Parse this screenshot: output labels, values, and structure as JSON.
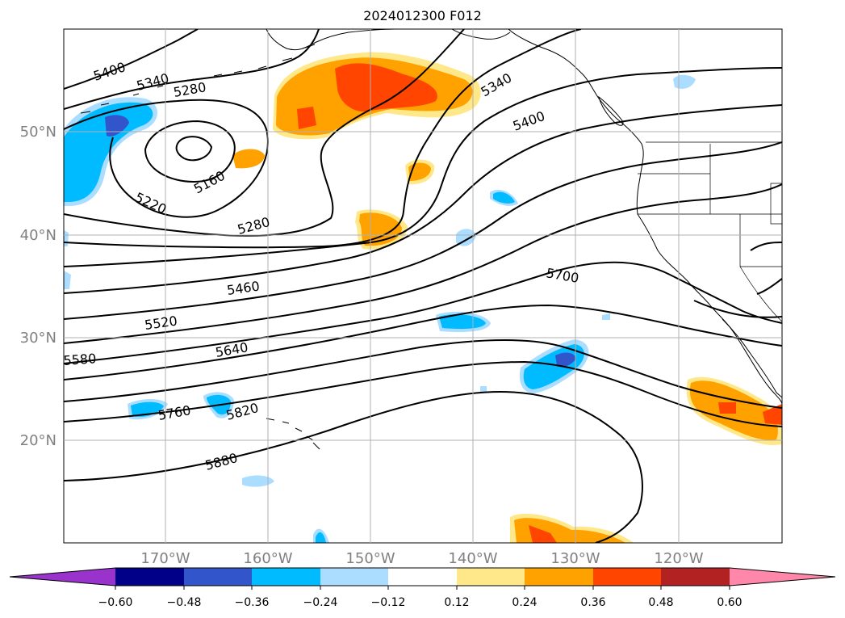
{
  "title": "2024012300 F012",
  "map": {
    "lat_labels": [
      "50°N",
      "40°N",
      "30°N",
      "20°N"
    ],
    "lon_labels": [
      "170°W",
      "160°W",
      "150°W",
      "140°W",
      "130°W",
      "120°W"
    ],
    "contour_labels": [
      "5400",
      "5340",
      "5280",
      "5160",
      "5220",
      "5280",
      "5460",
      "5520",
      "5580",
      "5640",
      "5700",
      "5760",
      "5820",
      "5880",
      "5340",
      "5400"
    ]
  },
  "colorbar": {
    "ticks": [
      "−0.60",
      "−0.48",
      "−0.36",
      "−0.24",
      "−0.12",
      "0.12",
      "0.24",
      "0.36",
      "0.48",
      "0.60"
    ],
    "colors": [
      "#9933cc",
      "#000088",
      "#3355cc",
      "#00bbff",
      "#aaddff",
      "#ffffff",
      "#ffe88a",
      "#ffa200",
      "#ff4500",
      "#b22222",
      "#ff88aa"
    ]
  },
  "colors": {
    "land_outline": "#000000",
    "grid": "#b0b0b0",
    "axis_label": "#808080"
  }
}
